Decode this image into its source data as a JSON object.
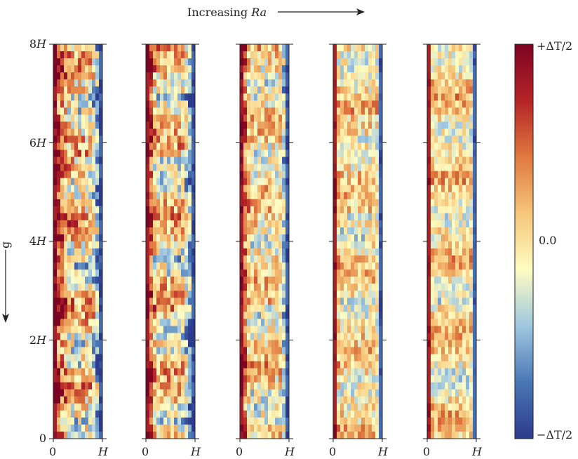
{
  "header": {
    "label_prefix": "Increasing ",
    "label_symbol": "Ra"
  },
  "gravity": {
    "label": "g"
  },
  "y_axis": {
    "tick_labels": [
      {
        "num": "0",
        "unit": ""
      },
      {
        "num": "2",
        "unit": "H"
      },
      {
        "num": "4",
        "unit": "H"
      },
      {
        "num": "6",
        "unit": "H"
      },
      {
        "num": "8",
        "unit": "H"
      }
    ]
  },
  "x_axis": {
    "tick_labels": [
      {
        "num": "0",
        "unit": ""
      },
      {
        "num": "",
        "unit": "H"
      }
    ]
  },
  "colorbar": {
    "max_label": "+ΔT/2",
    "mid_label": "0.0",
    "min_label": "−ΔT/2",
    "stops": [
      "#2c3a8c",
      "#4a77b6",
      "#9fc7e0",
      "#fffdc2",
      "#f6c67a",
      "#e0793f",
      "#b52427",
      "#7d0322"
    ]
  },
  "panels": [
    {
      "name": "panel-ra-1",
      "hot_band": 0.35,
      "cold_band": 0.22,
      "roughness": 0.08
    },
    {
      "name": "panel-ra-2",
      "hot_band": 0.22,
      "cold_band": 0.25,
      "roughness": 0.06
    },
    {
      "name": "panel-ra-3",
      "hot_band": 0.2,
      "cold_band": 0.16,
      "roughness": 0.05
    },
    {
      "name": "panel-ra-4",
      "hot_band": 0.12,
      "cold_band": 0.1,
      "roughness": 0.03
    },
    {
      "name": "panel-ra-5",
      "hot_band": 0.08,
      "cold_band": 0.08,
      "roughness": 0.02
    }
  ]
}
